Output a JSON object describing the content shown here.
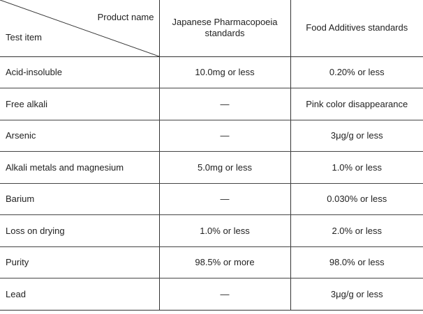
{
  "header": {
    "corner_top": "Product name",
    "corner_bottom": "Test item",
    "col_jp": "Japanese Pharmacopoeia standards",
    "col_food": "Food Additives standards"
  },
  "rows": [
    {
      "item": "Acid-insoluble",
      "jp": "10.0mg or less",
      "food": "0.20% or less"
    },
    {
      "item": "Free alkali",
      "jp": "—",
      "food": "Pink color disappearance"
    },
    {
      "item": "Arsenic",
      "jp": "—",
      "food": "3μg/g or less"
    },
    {
      "item": "Alkali metals and magnesium",
      "jp": "5.0mg or less",
      "food": "1.0% or less"
    },
    {
      "item": "Barium",
      "jp": "—",
      "food": "0.030% or less"
    },
    {
      "item": "Loss on drying",
      "jp": "1.0% or less",
      "food": "2.0% or less"
    },
    {
      "item": "Purity",
      "jp": "98.5% or more",
      "food": "98.0% or less"
    },
    {
      "item": "Lead",
      "jp": "—",
      "food": "3μg/g or less"
    }
  ]
}
